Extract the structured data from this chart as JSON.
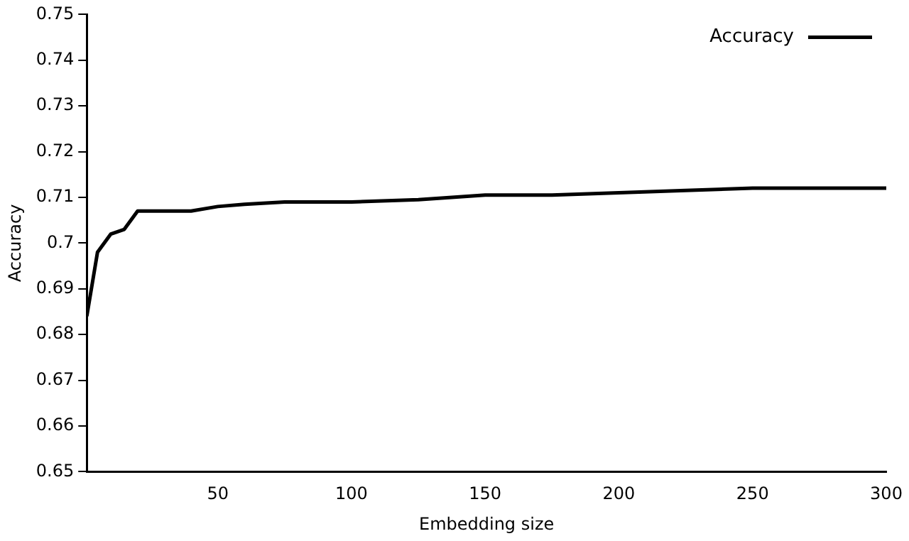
{
  "chart_data": {
    "type": "line",
    "xlabel": "Embedding size",
    "ylabel": "Accuracy",
    "x": [
      1,
      5,
      10,
      15,
      20,
      30,
      40,
      50,
      60,
      75,
      100,
      125,
      150,
      175,
      200,
      225,
      250,
      275,
      300
    ],
    "series": [
      {
        "name": "Accuracy",
        "color": "#000000",
        "values": [
          0.684,
          0.698,
          0.702,
          0.703,
          0.707,
          0.707,
          0.707,
          0.708,
          0.7085,
          0.709,
          0.709,
          0.7095,
          0.7105,
          0.7105,
          0.711,
          0.7115,
          0.712,
          0.712,
          0.712
        ]
      }
    ],
    "xlim": [
      1,
      300
    ],
    "xticks": [
      50,
      100,
      150,
      200,
      250,
      300
    ],
    "ylim": [
      0.65,
      0.75
    ],
    "yticks": [
      0.65,
      0.66,
      0.67,
      0.68,
      0.69,
      0.7,
      0.71,
      0.72,
      0.73,
      0.74,
      0.75
    ],
    "grid": false,
    "legend": "top right",
    "marker": "none",
    "line_style": "solid"
  }
}
